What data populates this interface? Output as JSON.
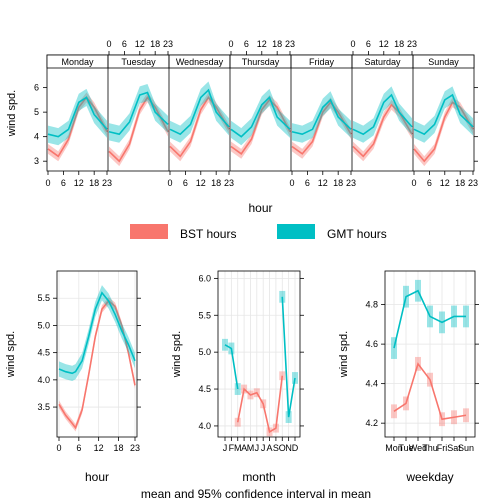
{
  "colors": {
    "bst": "#F8766D",
    "gmt": "#00BFC4"
  },
  "legend": {
    "position": "between-panels",
    "items": [
      {
        "name": "BST hours",
        "color": "#F8766D"
      },
      {
        "name": "GMT hours",
        "color": "#00BFC4"
      }
    ]
  },
  "caption": "mean and 95% confidence interval in mean",
  "chart_data": [
    {
      "type": "line",
      "title": "",
      "xlabel": "hour",
      "ylabel": "wind spd.",
      "layout": "7 day panels",
      "panels": [
        "Monday",
        "Tuesday",
        "Wednesday",
        "Thursday",
        "Friday",
        "Saturday",
        "Sunday"
      ],
      "xlim": [
        0,
        23
      ],
      "ylim": [
        2.6,
        6.8
      ],
      "xticks": [
        "0",
        "6",
        "12",
        "18",
        "23"
      ],
      "yticks": [
        3,
        4,
        5,
        6
      ],
      "grid": false,
      "series": [
        {
          "name": "BST hours",
          "color": "#F8766D",
          "x": [
            0,
            4,
            8,
            12,
            15,
            18,
            23
          ],
          "panel_values": [
            [
              3.5,
              3.2,
              3.9,
              5.2,
              5.6,
              5.2,
              4.2
            ],
            [
              3.4,
              3.0,
              3.7,
              5.1,
              5.6,
              5.2,
              4.2
            ],
            [
              3.6,
              3.2,
              3.8,
              5.1,
              5.6,
              5.2,
              4.3
            ],
            [
              3.6,
              3.3,
              3.9,
              5.1,
              5.5,
              5.2,
              4.2
            ],
            [
              3.6,
              3.3,
              3.8,
              5.0,
              5.4,
              5.0,
              4.1
            ],
            [
              3.6,
              3.2,
              3.7,
              4.8,
              5.3,
              5.0,
              4.1
            ],
            [
              3.5,
              3.0,
              3.5,
              4.8,
              5.4,
              5.2,
              4.3
            ]
          ],
          "ci": 0.2
        },
        {
          "name": "GMT hours",
          "color": "#00BFC4",
          "x": [
            0,
            4,
            8,
            12,
            15,
            18,
            23
          ],
          "panel_values": [
            [
              4.1,
              4.0,
              4.3,
              5.4,
              5.6,
              4.9,
              4.3
            ],
            [
              4.2,
              4.1,
              4.6,
              5.7,
              5.8,
              5.0,
              4.5
            ],
            [
              4.3,
              4.1,
              4.5,
              5.6,
              5.9,
              5.0,
              4.4
            ],
            [
              4.3,
              4.0,
              4.4,
              5.3,
              5.6,
              4.8,
              4.3
            ],
            [
              4.2,
              4.1,
              4.3,
              5.2,
              5.5,
              4.8,
              4.3
            ],
            [
              4.3,
              4.1,
              4.4,
              5.4,
              5.7,
              5.0,
              4.4
            ],
            [
              4.3,
              4.1,
              4.5,
              5.5,
              5.7,
              4.9,
              4.4
            ]
          ],
          "ci": 0.35
        }
      ]
    },
    {
      "type": "line",
      "title": "",
      "xlabel": "hour",
      "ylabel": "wind spd.",
      "xlim": [
        0,
        23
      ],
      "ylim": [
        2.95,
        6.0
      ],
      "xticks": [
        "0",
        "6",
        "12",
        "18",
        "23"
      ],
      "yticks": [
        3.5,
        4.0,
        4.5,
        5.0,
        5.5
      ],
      "grid": true,
      "series": [
        {
          "name": "BST hours",
          "color": "#F8766D",
          "x": [
            0,
            2,
            4,
            5,
            7,
            9,
            11,
            13,
            15,
            17,
            19,
            21,
            23
          ],
          "values": [
            3.55,
            3.35,
            3.2,
            3.12,
            3.45,
            4.1,
            4.8,
            5.3,
            5.45,
            5.35,
            5.0,
            4.5,
            3.9
          ],
          "ci": 0.07
        },
        {
          "name": "GMT hours",
          "color": "#00BFC4",
          "x": [
            0,
            2,
            4,
            5,
            7,
            9,
            11,
            13,
            15,
            17,
            19,
            21,
            23
          ],
          "values": [
            4.2,
            4.15,
            4.12,
            4.15,
            4.35,
            4.8,
            5.3,
            5.6,
            5.45,
            5.2,
            4.9,
            4.65,
            4.35
          ],
          "ci": 0.14
        }
      ]
    },
    {
      "type": "line",
      "title": "",
      "xlabel": "month",
      "ylabel": "wind spd.",
      "categories": [
        "J",
        "F",
        "M",
        "A",
        "M",
        "J",
        "J",
        "A",
        "S",
        "O",
        "N",
        "D"
      ],
      "ylim": [
        3.85,
        6.1
      ],
      "yticks": [
        4.0,
        4.5,
        5.0,
        5.5,
        6.0
      ],
      "grid": true,
      "series": [
        {
          "name": "BST hours",
          "color": "#F8766D",
          "values": [
            null,
            null,
            4.05,
            4.5,
            4.42,
            4.45,
            4.3,
            3.92,
            3.97,
            4.68,
            null,
            null
          ],
          "ci": 0.06
        },
        {
          "name": "GMT hours",
          "color": "#00BFC4",
          "values": [
            5.1,
            5.05,
            4.5,
            null,
            null,
            null,
            null,
            null,
            null,
            5.75,
            4.12,
            4.65
          ],
          "ci": 0.08
        }
      ]
    },
    {
      "type": "line",
      "title": "",
      "xlabel": "weekday",
      "ylabel": "wind spd.",
      "categories": [
        "Mon",
        "Tue",
        "Wed",
        "Thu",
        "Fri",
        "Sat",
        "Sun"
      ],
      "ylim": [
        4.13,
        4.97
      ],
      "yticks": [
        4.2,
        4.4,
        4.6,
        4.8
      ],
      "grid": true,
      "series": [
        {
          "name": "BST hours",
          "color": "#F8766D",
          "values": [
            4.26,
            4.3,
            4.5,
            4.42,
            4.22,
            4.23,
            4.24
          ],
          "ci": 0.035
        },
        {
          "name": "GMT hours",
          "color": "#00BFC4",
          "values": [
            4.58,
            4.84,
            4.87,
            4.74,
            4.71,
            4.74,
            4.74
          ],
          "ci": 0.055
        }
      ]
    }
  ]
}
